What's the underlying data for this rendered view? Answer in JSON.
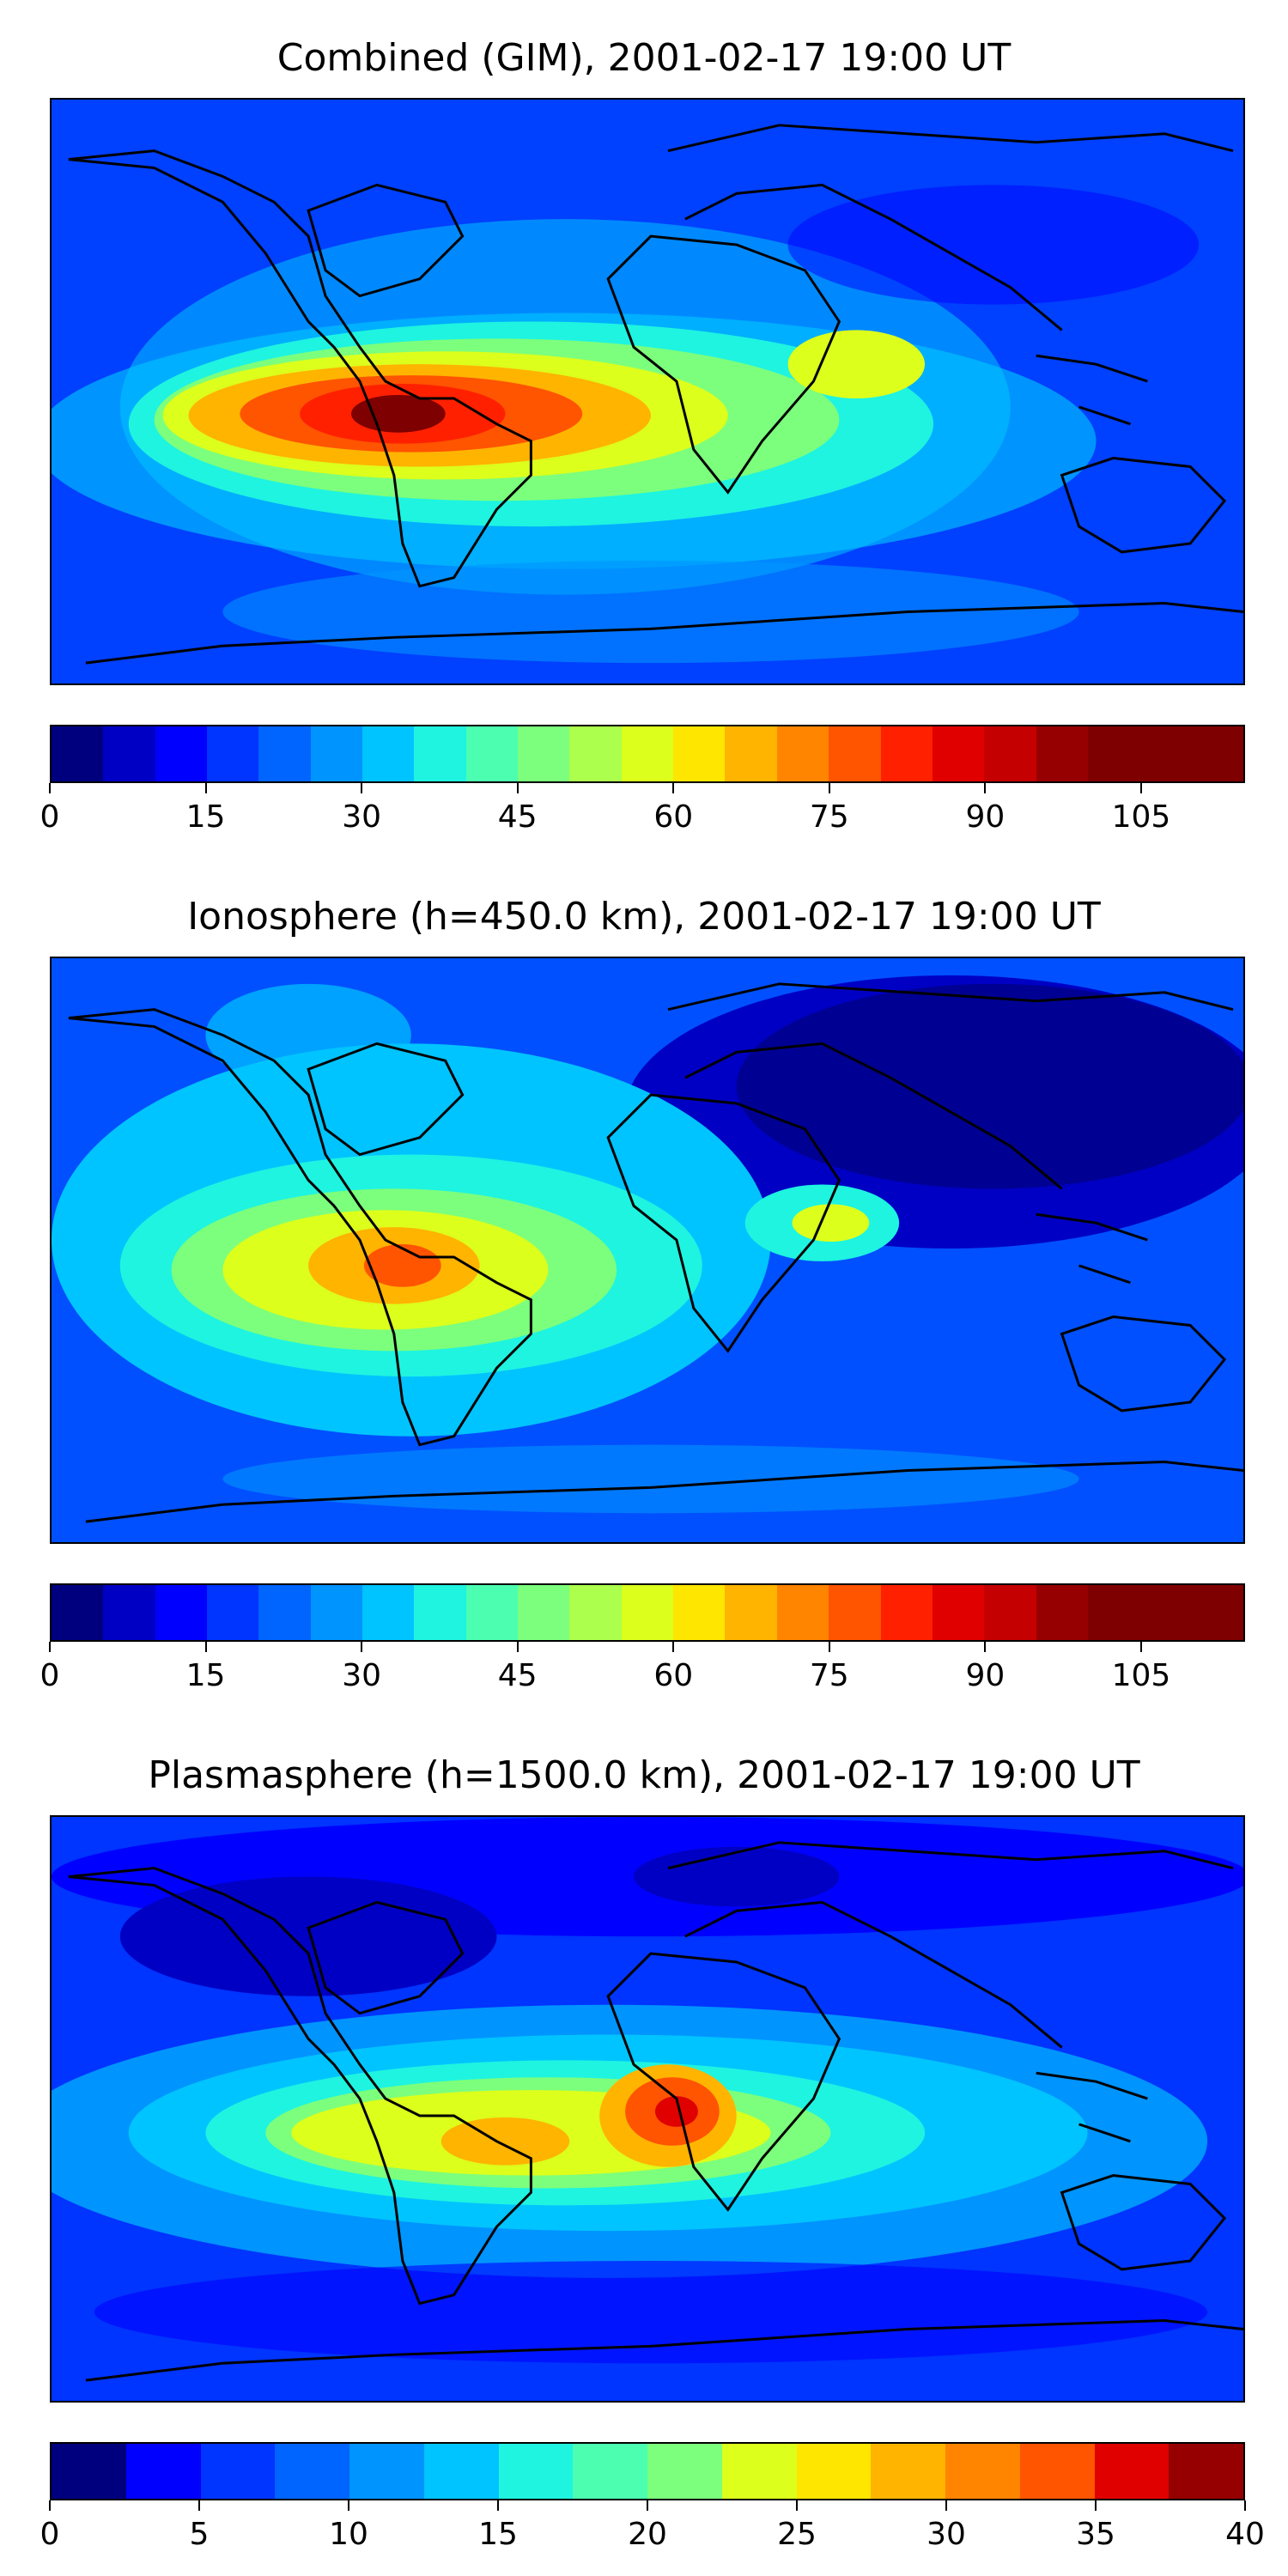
{
  "chart_data": [
    {
      "type": "heatmap",
      "title": "Combined (GIM), 2001-02-17 19:00 UT",
      "colorbar": {
        "min": 0,
        "max": 115,
        "step": 5,
        "ticks": [
          0,
          15,
          30,
          45,
          60,
          75,
          90,
          105
        ]
      },
      "peak_region": "South America / equatorial Atlantic",
      "peak_value": 112
    },
    {
      "type": "heatmap",
      "title": "Ionosphere  (h=450.0 km), 2001-02-17 19:00 UT",
      "colorbar": {
        "min": 0,
        "max": 115,
        "step": 5,
        "ticks": [
          0,
          15,
          30,
          45,
          60,
          75,
          90,
          105
        ]
      },
      "peak_region": "Western South America",
      "peak_value": 90
    },
    {
      "type": "heatmap",
      "title": "Plasmasphere (h=1500.0 km), 2001-02-17 19:00 UT",
      "colorbar": {
        "min": 0,
        "max": 40,
        "step": 2.5,
        "ticks": [
          0,
          5,
          10,
          15,
          20,
          25,
          30,
          35,
          40
        ]
      },
      "peak_region": "West-central Africa",
      "peak_value": 36
    }
  ],
  "colors": {
    "jet": [
      "#00007f",
      "#0000c4",
      "#0000ff",
      "#0034ff",
      "#0064ff",
      "#0094ff",
      "#00c4ff",
      "#1ef4e0",
      "#4cffb0",
      "#7cff7c",
      "#acff4c",
      "#dcff1c",
      "#ffe600",
      "#ffb400",
      "#ff8400",
      "#ff5400",
      "#ff2000",
      "#c40000",
      "#7f0000"
    ]
  }
}
